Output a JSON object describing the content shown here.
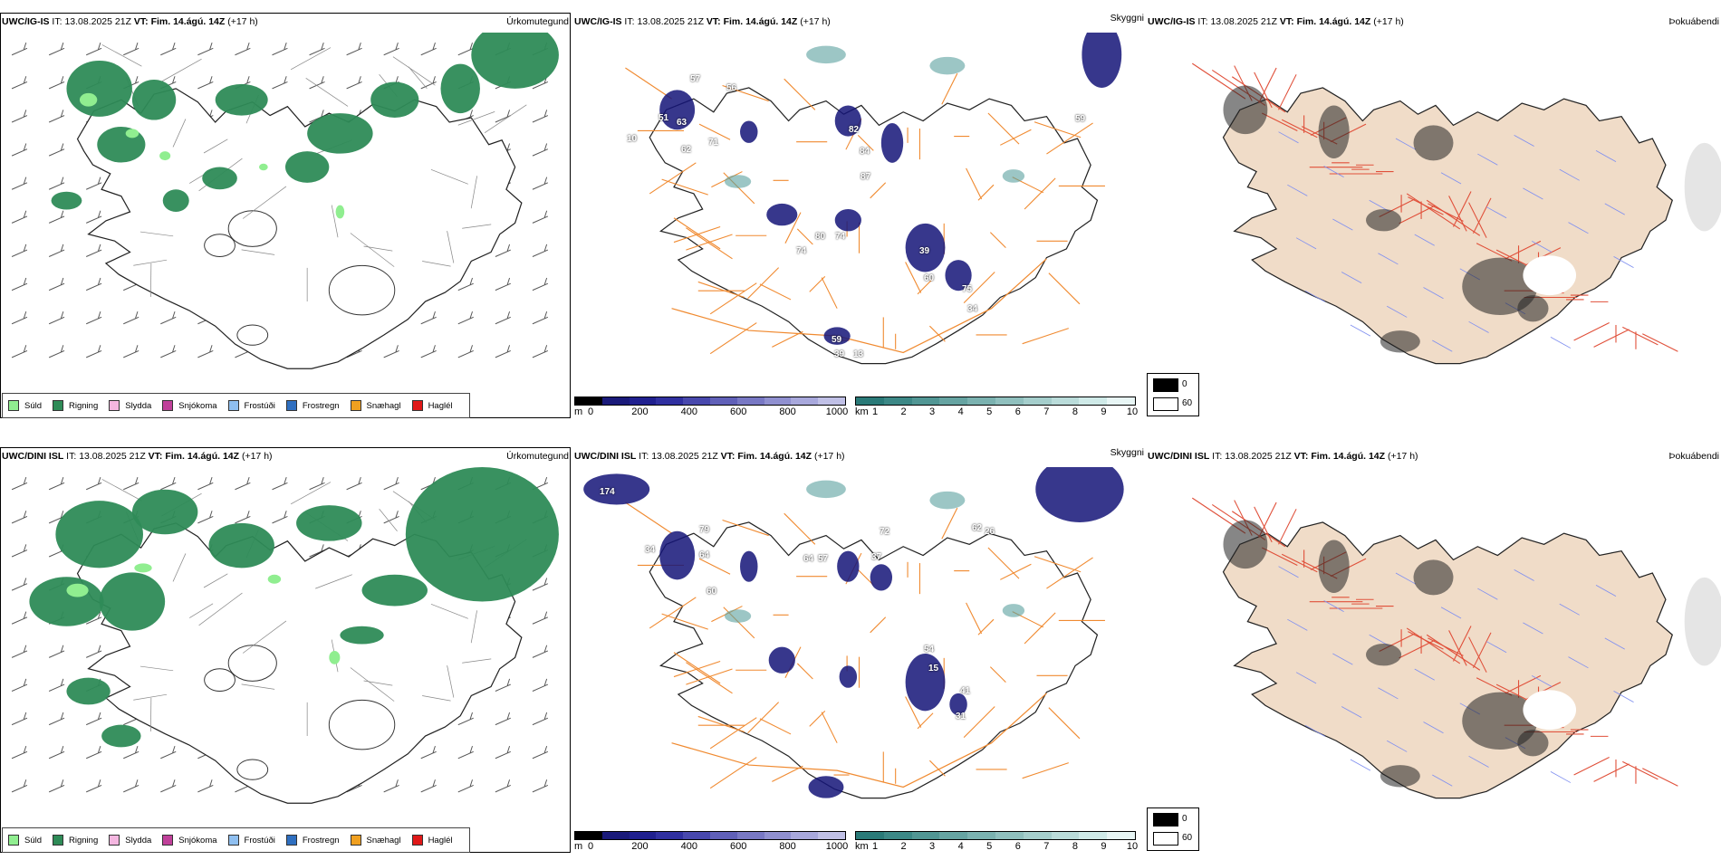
{
  "rows": [
    {
      "model": "UWC/IG-IS",
      "it_label": "IT:",
      "it_value": "13.08.2025 21Z",
      "vt_label": "VT:",
      "vt_value": "Fim. 14.ágú. 14Z",
      "lead": "(+17 h)",
      "panel1_type": "Úrkomutegund",
      "panel2_type": "Skyggni",
      "panel3_type": "Þokuábendi",
      "cloud_labels": [
        "57",
        "10",
        "56",
        "63",
        "71",
        "51",
        "62",
        "82",
        "84",
        "87",
        "59",
        "74",
        "80",
        "74",
        "39",
        "60",
        "75",
        "34",
        "59",
        "39",
        "13"
      ],
      "fog_label_top": "0",
      "fog_label_bottom": "60"
    },
    {
      "model": "UWC/DINI ISL",
      "it_label": "IT:",
      "it_value": "13.08.2025 21Z",
      "vt_label": "VT:",
      "vt_value": "Fim. 14.ágú. 14Z",
      "lead": "(+17 h)",
      "panel1_type": "Úrkomutegund",
      "panel2_type": "Skyggni",
      "panel3_type": "Þokuábendi",
      "cloud_labels": [
        "174",
        "79",
        "64",
        "34",
        "60",
        "64",
        "57",
        "37",
        "54",
        "15",
        "41",
        "31",
        "26",
        "62",
        "72"
      ],
      "fog_label_top": "0",
      "fog_label_bottom": "60"
    }
  ],
  "precip_legend": [
    {
      "label": "Súld",
      "color": "#90ee90"
    },
    {
      "label": "Rigning",
      "color": "#2e8b57"
    },
    {
      "label": "Slydda",
      "color": "#f4b6e0"
    },
    {
      "label": "Snjókoma",
      "color": "#c0409a"
    },
    {
      "label": "Frostúði",
      "color": "#8fbff0"
    },
    {
      "label": "Frostregn",
      "color": "#2f6fc0"
    },
    {
      "label": "Snæhagl",
      "color": "#f0a020"
    },
    {
      "label": "Haglél",
      "color": "#e01818"
    }
  ],
  "cloudbase_bar": {
    "unit": "m",
    "ticks": [
      "0",
      "200",
      "400",
      "600",
      "800",
      "1000"
    ],
    "colors": [
      "#000000",
      "#1a1a7a",
      "#20208f",
      "#3030a0",
      "#4848ad",
      "#6060b8",
      "#7878c4",
      "#9090d0",
      "#a8a8dc",
      "#c0c0e6"
    ]
  },
  "visibility_bar": {
    "unit": "km",
    "ticks": [
      "1",
      "2",
      "3",
      "4",
      "5",
      "6",
      "7",
      "8",
      "9",
      "10"
    ],
    "colors": [
      "#2a7a78",
      "#3c8886",
      "#519694",
      "#66a4a2",
      "#7bb2b0",
      "#90c0be",
      "#a5cecc",
      "#badcda",
      "#cfeae8",
      "#e8f6f5"
    ]
  },
  "colors": {
    "land_fog": "#f0dcc8",
    "roads": "#f08a30",
    "rivers": "#8090f0",
    "rain": "#2e8b57",
    "drizzle": "#90ee90",
    "cloud_dark": "#141478"
  }
}
